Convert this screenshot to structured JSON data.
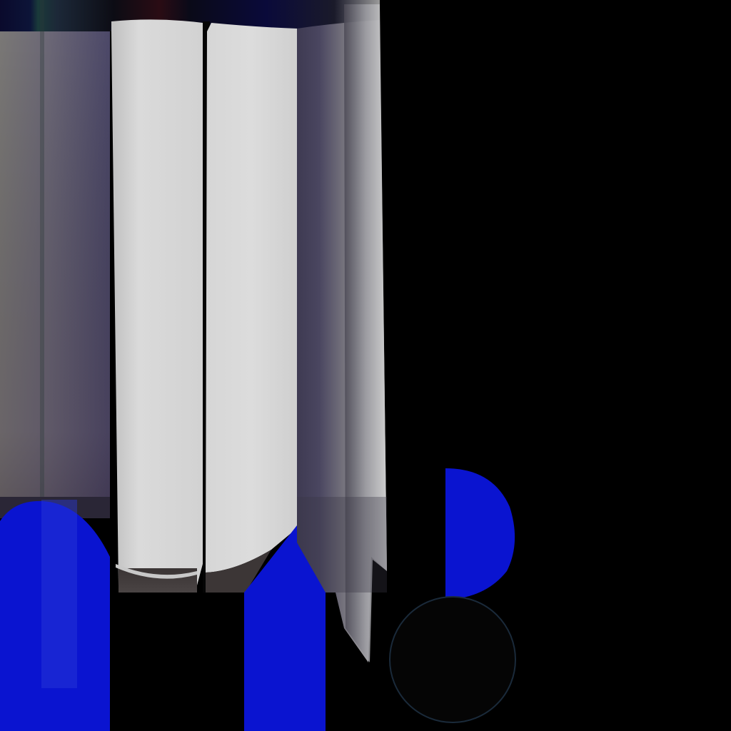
{
  "scene": {
    "description_visible_text": "",
    "colors": {
      "background": "#000000",
      "panel_light": "#D8D8D8",
      "panel_purple": "#5A546E",
      "accent_blue": "#0A14D0",
      "top_strip": "#0A0A2A"
    }
  }
}
